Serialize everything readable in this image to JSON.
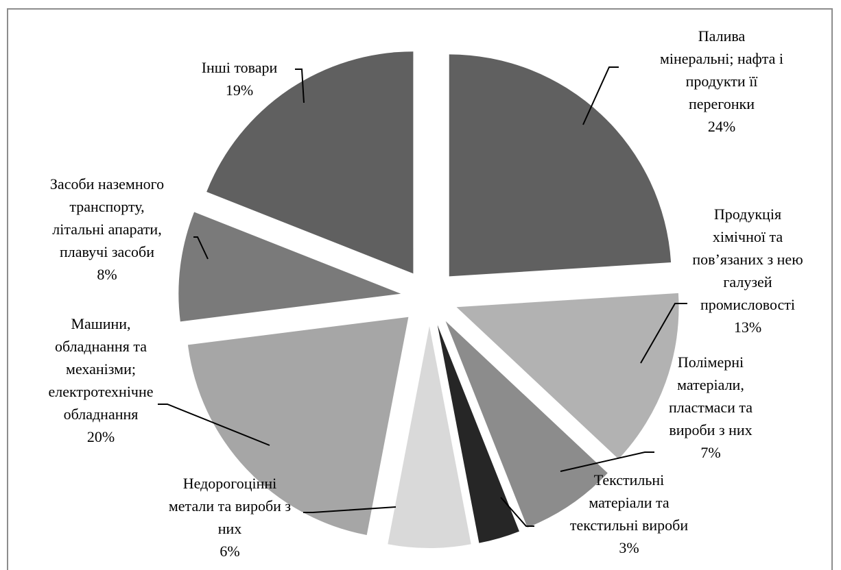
{
  "chart_data": {
    "type": "pie",
    "title": "",
    "exploded": true,
    "slices": [
      {
        "label": [
          "Палива",
          "мінеральні; нафта і",
          "продукти її",
          "перегонки"
        ],
        "value": 24,
        "value_label": "24%",
        "color": "#606060"
      },
      {
        "label": [
          "Продукція",
          "хімічної та",
          "пов’язаних з нею",
          "галузей",
          "промисловості"
        ],
        "value": 13,
        "value_label": "13%",
        "color": "#b2b2b2"
      },
      {
        "label": [
          "Полімерні",
          "матеріали,",
          "пластмаси та",
          "вироби з них"
        ],
        "value": 7,
        "value_label": "7%",
        "color": "#8c8c8c"
      },
      {
        "label": [
          "Текстильні",
          "матеріали та",
          "текстильні вироби"
        ],
        "value": 3,
        "value_label": "3%",
        "color": "#262626"
      },
      {
        "label": [
          "Недорогоцінні",
          "метали та вироби з",
          "них"
        ],
        "value": 6,
        "value_label": "6%",
        "color": "#d9d9d9"
      },
      {
        "label": [
          "Машини,",
          "обладнання та",
          "механізми;",
          "електротехнічне",
          "обладнання"
        ],
        "value": 20,
        "value_label": "20%",
        "color": "#a6a6a6"
      },
      {
        "label": [
          "Засоби наземного",
          "транспорту,",
          "літальні апарати,",
          "плавучі засоби"
        ],
        "value": 8,
        "value_label": "8%",
        "color": "#7a7a7a"
      },
      {
        "label": [
          "Інші товари"
        ],
        "value": 19,
        "value_label": "19%",
        "color": "#606060"
      }
    ]
  }
}
